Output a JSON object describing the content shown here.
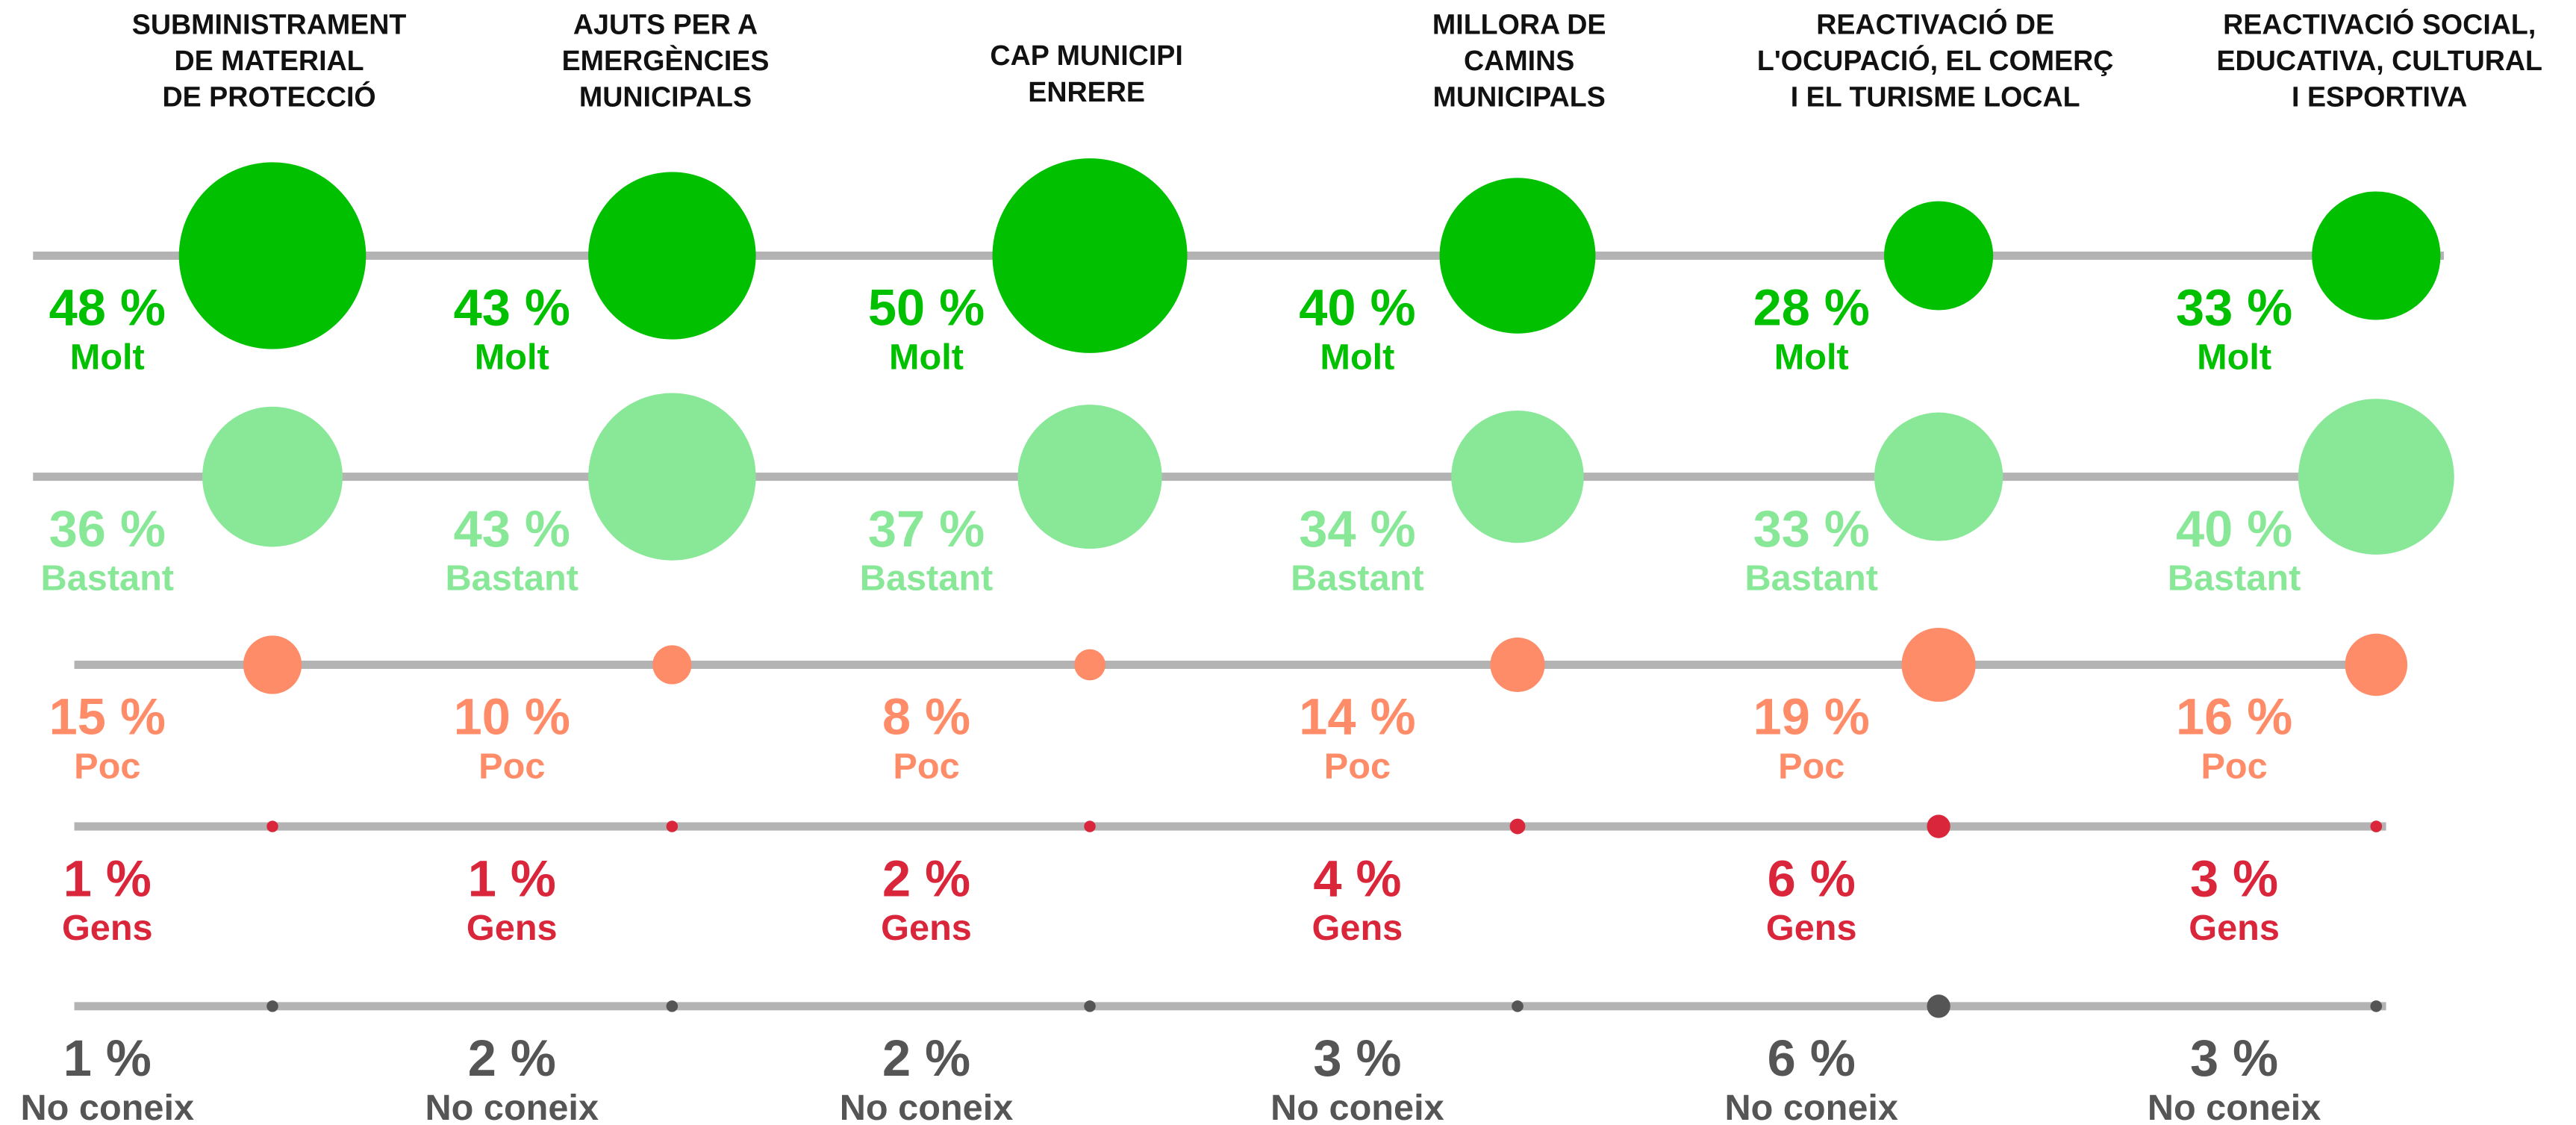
{
  "chart_data": {
    "type": "bubble",
    "categories": [
      [
        "SUBMINISTRAMENT",
        "DE MATERIAL",
        "DE PROTECCIÓ"
      ],
      [
        "AJUTS PER A",
        "EMERGÈNCIES",
        "MUNICIPALS"
      ],
      [
        "CAP MUNICIPI",
        "ENRERE"
      ],
      [
        "MILLORA DE",
        "CAMINS",
        "MUNICIPALS"
      ],
      [
        "REACTIVACIÓ DE",
        "L'OCUPACIÓ, EL COMERÇ",
        "I EL TURISME LOCAL"
      ],
      [
        "REACTIVACIÓ SOCIAL,",
        "EDUCATIVA, CULTURAL",
        "I ESPORTIVA"
      ]
    ],
    "series": [
      {
        "name": "Molt",
        "color": "#00c000",
        "values": [
          48,
          43,
          50,
          40,
          28,
          33
        ],
        "value_labels": [
          "48 %",
          "43 %",
          "50 %",
          "40 %",
          "28 %",
          "33 %"
        ]
      },
      {
        "name": "Bastant",
        "color": "#88e898",
        "values": [
          36,
          43,
          37,
          34,
          33,
          40
        ],
        "value_labels": [
          "36 %",
          "43 %",
          "37 %",
          "34 %",
          "33 %",
          "40 %"
        ]
      },
      {
        "name": "Poc",
        "color": "#ff8c69",
        "values": [
          15,
          10,
          8,
          14,
          19,
          16
        ],
        "value_labels": [
          "15 %",
          "10 %",
          "8 %",
          "14 %",
          "19 %",
          "16 %"
        ]
      },
      {
        "name": "Gens",
        "color": "#d9263a",
        "values": [
          1,
          1,
          2,
          4,
          6,
          3
        ],
        "value_labels": [
          "1 %",
          "1 %",
          "2 %",
          "4 %",
          "6 %",
          "3 %"
        ]
      },
      {
        "name": "No coneix",
        "color": "#555555",
        "values": [
          1,
          2,
          2,
          3,
          6,
          3
        ],
        "value_labels": [
          "1 %",
          "2 %",
          "2 %",
          "3 %",
          "6 %",
          "3 %"
        ]
      }
    ]
  }
}
